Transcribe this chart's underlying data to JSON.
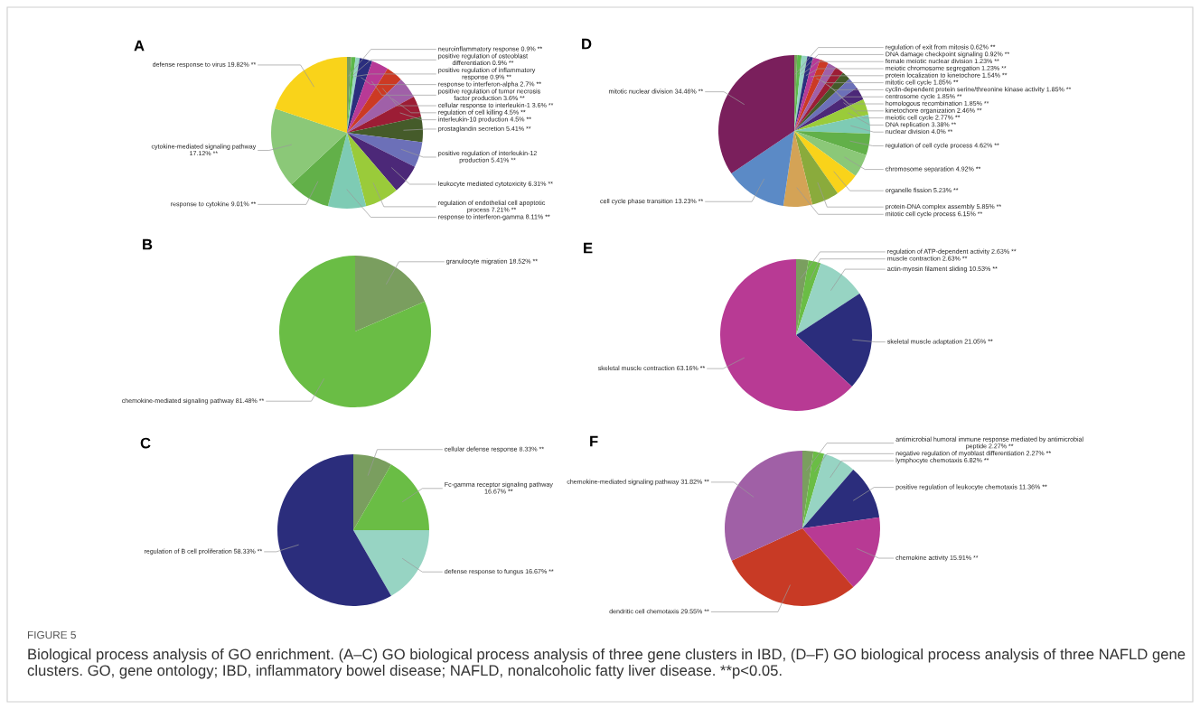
{
  "chart_data": [
    {
      "type": "pie",
      "title": "A",
      "categories": [
        "neuroinflammatory response 0.9% **",
        "positive regulation of osteoblast\ndifferentiation 0.9% **",
        "positive regulation of inflammatory\nresponse 0.9% **",
        "response to interferon-alpha 2.7% **",
        "positive regulation of tumor necrosis\nfactor production 3.6% **",
        "cellular response to interleukin-1 3.6% **",
        "regulation of cell killing 4.5% **",
        "interleukin-10 production 4.5% **",
        "prostaglandin secretion 5.41% **",
        "positive regulation of interleukin-12\nproduction 5.41% **",
        "leukocyte mediated cytotoxicity 6.31% **",
        "regulation of endothelial cell apoptotic\nprocess 7.21% **",
        "response to interferon-gamma 8.11% **",
        "response to cytokine 9.01% **",
        "cytokine-mediated signaling pathway\n17.12% **",
        "defense response to virus 19.82% **"
      ],
      "values": [
        0.9,
        0.9,
        0.9,
        2.7,
        3.6,
        3.6,
        4.5,
        4.5,
        5.41,
        5.41,
        6.31,
        7.21,
        8.11,
        9.01,
        17.12,
        19.82
      ],
      "colors": [
        "#7a9e5f",
        "#5cb84a",
        "#97d4c3",
        "#2b2e7e",
        "#b83a96",
        "#cc3a24",
        "#a060a8",
        "#9c1d35",
        "#455b2a",
        "#6c70b8",
        "#4c2878",
        "#9acb3a",
        "#7ecbb4",
        "#62b049",
        "#8bc878",
        "#f9d31a"
      ],
      "annotations": [
        "FIGURE 5",
        "Biological process analysis of GO enrichment. (A–C) GO biological process analysis of three gene clusters in IBD, (D–F) GO biological process analysis of three NAFLD gene clusters. GO, gene ontology; IBD, inflammatory bowel disease; NAFLD, nonalcoholic fatty liver disease. **p<0.05."
      ]
    },
    {
      "type": "pie",
      "title": "B",
      "categories": [
        "granulocyte migration 18.52% **",
        "chemokine-mediated signaling pathway 81.48% **"
      ],
      "values": [
        18.52,
        81.48
      ],
      "colors": [
        "#7a9e5f",
        "#6abd45"
      ]
    },
    {
      "type": "pie",
      "title": "C",
      "categories": [
        "cellular defense response 8.33% **",
        "Fc-gamma receptor signaling pathway\n16.67% **",
        "defense response to fungus 16.67% **",
        "regulation of B cell proliferation 58.33% **"
      ],
      "values": [
        8.33,
        16.67,
        16.67,
        58.33
      ],
      "colors": [
        "#7a9e5f",
        "#6abd45",
        "#97d4c3",
        "#2b2d7c"
      ]
    },
    {
      "type": "pie",
      "title": "D",
      "categories": [
        "regulation of exit from mitosis 0.62% **",
        "DNA damage checkpoint signaling 0.92% **",
        "female meiotic nuclear division 1.23% **",
        "meiotic chromosome segregation 1.23% **",
        "protein localization to kinetochore 1.54% **",
        "mitotic cell cycle 1.85% **",
        "cyclin-dependent protein serine/threonine kinase activity 1.85% **",
        "centrosome cycle 1.85% **",
        "homologous recombination 1.85% **",
        "kinetochore organization 2.46% **",
        "meiotic cell cycle 2.77% **",
        "DNA replication 3.38% **",
        "nuclear division 4.0% **",
        "regulation of cell cycle process 4.62% **",
        "chromosome separation 4.92% **",
        "organelle fission 5.23% **",
        "protein-DNA complex assembly 5.85% **",
        "mitotic cell cycle process 6.15% **",
        "cell cycle phase transition 13.23% **",
        "mitotic nuclear division 34.46% **"
      ],
      "values": [
        0.62,
        0.92,
        1.23,
        1.23,
        1.54,
        1.85,
        1.85,
        1.85,
        1.85,
        2.46,
        2.77,
        3.38,
        4.0,
        4.62,
        4.92,
        5.23,
        5.85,
        6.15,
        13.23,
        34.46
      ],
      "colors": [
        "#7a9e5f",
        "#5cb84a",
        "#97d4c3",
        "#2b2e7e",
        "#b83a96",
        "#cc3a24",
        "#a060a8",
        "#9c1d35",
        "#455b2a",
        "#6c70b8",
        "#4c2878",
        "#9acb3a",
        "#7ecbb4",
        "#62b049",
        "#8bc878",
        "#f9d31a",
        "#8aab3c",
        "#d4a356",
        "#5b8ac6",
        "#7a1f5c"
      ]
    },
    {
      "type": "pie",
      "title": "E",
      "categories": [
        "regulation of ATP-dependent activity 2.63% **",
        "muscle contraction 2.63% **",
        "actin-myosin filament sliding 10.53% **",
        "skeletal muscle adaptation 21.05% **",
        "skeletal muscle contraction 63.16% **"
      ],
      "values": [
        2.63,
        2.63,
        10.53,
        21.05,
        63.16
      ],
      "colors": [
        "#7a9e5f",
        "#6abd45",
        "#97d4c3",
        "#2b2d7c",
        "#b83a94"
      ]
    },
    {
      "type": "pie",
      "title": "F",
      "categories": [
        "antimicrobial humoral immune response mediated by antimicrobial\npeptide 2.27% **",
        "negative regulation of myoblast differentiation 2.27% **",
        "lymphocyte chemotaxis 6.82% **",
        "positive regulation of leukocyte chemotaxis 11.36% **",
        "chemokine activity 15.91% **",
        "dendritic cell chemotaxis 29.55% **",
        "chemokine-mediated signaling pathway 31.82% **"
      ],
      "values": [
        2.27,
        2.27,
        6.82,
        11.36,
        15.91,
        29.55,
        31.82
      ],
      "colors": [
        "#7a9e5f",
        "#6abd45",
        "#97d4c3",
        "#2b2d7c",
        "#b83a94",
        "#c83a25",
        "#a060a6"
      ]
    }
  ]
}
